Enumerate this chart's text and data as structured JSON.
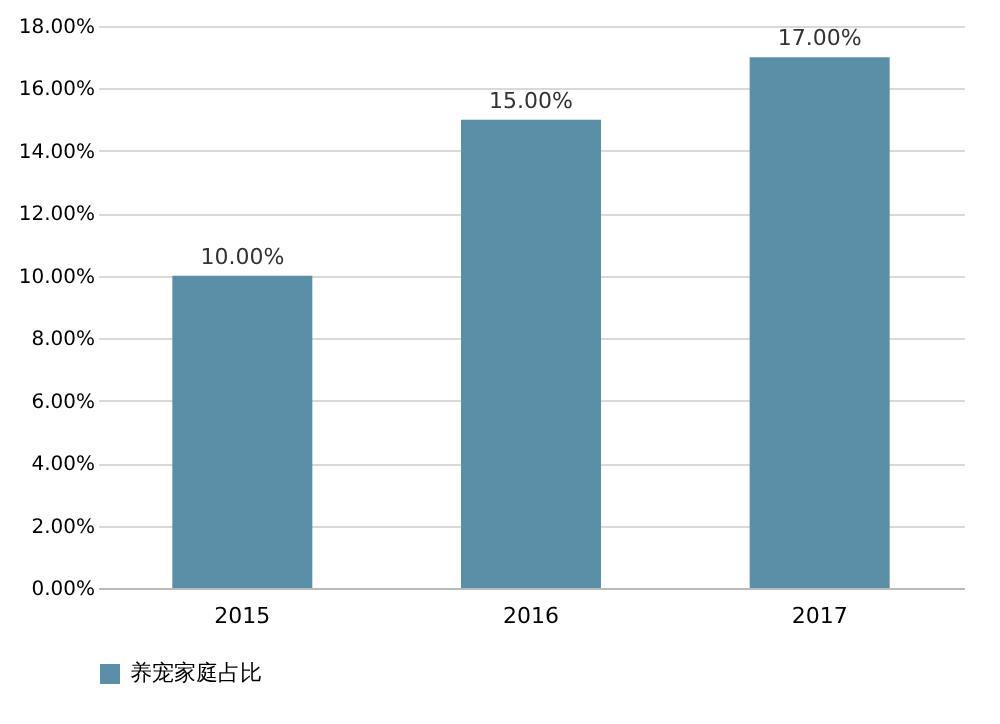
{
  "chart_data": {
    "type": "bar",
    "categories": [
      "2015",
      "2016",
      "2017"
    ],
    "series": [
      {
        "name": "养宠家庭占比",
        "color": "#5b8fa8",
        "values": [
          10,
          15,
          17
        ]
      }
    ],
    "value_labels": [
      "10.00%",
      "15.00%",
      "17.00%"
    ],
    "ylim": [
      0,
      18
    ],
    "yticks": [
      {
        "value": 0,
        "label": "0.00%"
      },
      {
        "value": 2,
        "label": "2.00%"
      },
      {
        "value": 4,
        "label": "4.00%"
      },
      {
        "value": 6,
        "label": "6.00%"
      },
      {
        "value": 8,
        "label": "8.00%"
      },
      {
        "value": 10,
        "label": "10.00%"
      },
      {
        "value": 12,
        "label": "12.00%"
      },
      {
        "value": 14,
        "label": "14.00%"
      },
      {
        "value": 16,
        "label": "16.00%"
      },
      {
        "value": 18,
        "label": "18.00%"
      }
    ],
    "grid": "y",
    "legend": "bottom"
  }
}
